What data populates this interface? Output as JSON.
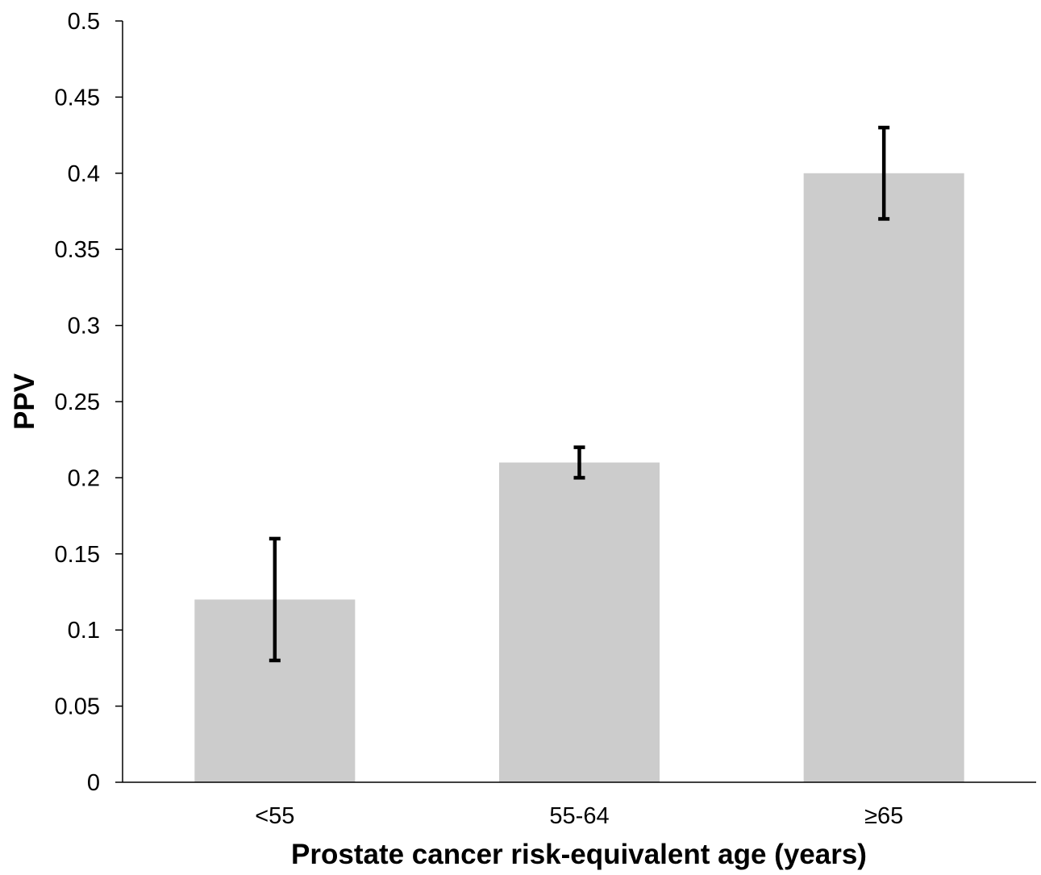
{
  "chart_data": {
    "type": "bar",
    "title": "",
    "xlabel": "Prostate cancer risk-equivalent age (years)",
    "ylabel": "PPV",
    "categories": [
      "<55",
      "55-64",
      "≥65"
    ],
    "values": [
      0.12,
      0.21,
      0.4
    ],
    "error_low": [
      0.08,
      0.2,
      0.37
    ],
    "error_high": [
      0.16,
      0.22,
      0.43
    ],
    "ylim": [
      0,
      0.5
    ],
    "yticks": [
      0,
      0.05,
      0.1,
      0.15,
      0.2,
      0.25,
      0.3,
      0.35,
      0.4,
      0.45,
      0.5
    ],
    "ytick_labels": [
      "0",
      "0.05",
      "0.1",
      "0.15",
      "0.2",
      "0.25",
      "0.3",
      "0.35",
      "0.4",
      "0.45",
      "0.5"
    ],
    "grid": false,
    "legend": "none",
    "colors": {
      "bar": "#cccccc",
      "error_bar": "#000000",
      "axis": "#000000"
    }
  }
}
